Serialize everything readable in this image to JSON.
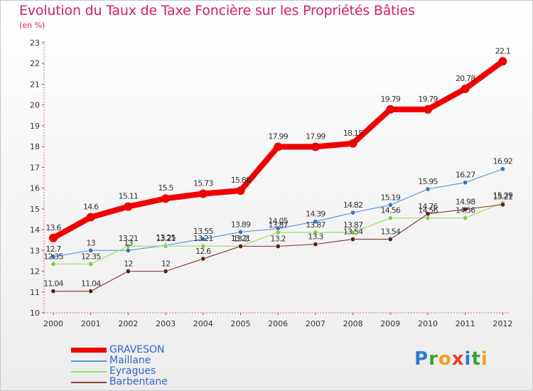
{
  "title": "Evolution du Taux de Taxe Foncière sur les Propriétés Bâties",
  "unit_label": "(en %)",
  "brand": {
    "letters": [
      "P",
      "r",
      "o",
      "x",
      "i",
      "t",
      "i"
    ],
    "colors": [
      "#2a7bd4",
      "#3aa035",
      "#f0a020",
      "#e8402a",
      "#2a7bd4",
      "#3aa035",
      "#f0a020"
    ]
  },
  "chart_data": {
    "type": "line",
    "title": "Evolution du Taux de Taxe Foncière sur les Propriétés Bâties",
    "ylabel": "(en %)",
    "xlabel": "",
    "categories": [
      "2000",
      "2001",
      "2002",
      "2003",
      "2004",
      "2005",
      "2006",
      "2007",
      "2008",
      "2009",
      "2010",
      "2011",
      "2012"
    ],
    "ylim": [
      10,
      23
    ],
    "yticks": [
      10,
      11,
      12,
      13,
      14,
      15,
      16,
      17,
      18,
      19,
      20,
      21,
      22,
      23
    ],
    "grid": false,
    "legend_position": "bottom-left",
    "series": [
      {
        "name": "GRAVESON",
        "color": "#ee0000",
        "bold": true,
        "values": [
          13.6,
          14.6,
          15.11,
          15.5,
          15.73,
          15.88,
          17.99,
          17.99,
          18.15,
          19.79,
          19.79,
          20.78,
          22.1
        ],
        "labels": [
          "13.6",
          "14.6",
          "15.11",
          "15.5",
          "15.73",
          "15.88",
          "17.99",
          "17.99",
          "18.15",
          "19.79",
          "19.79",
          "20.78",
          "22.1"
        ]
      },
      {
        "name": "Maillane",
        "color": "#5599dd",
        "marker": "#3377bb",
        "values": [
          12.7,
          13.0,
          13.0,
          13.25,
          13.55,
          13.89,
          14.05,
          14.39,
          14.82,
          15.19,
          15.95,
          16.27,
          16.92
        ],
        "labels": [
          "12.7",
          "13",
          "13",
          "13.25",
          "13.55",
          "13.89",
          "14.05",
          "14.39",
          "14.82",
          "15.19",
          "15.95",
          "16.27",
          "16.92"
        ]
      },
      {
        "name": "Eyragues",
        "color": "#99dd66",
        "marker": "#88cc44",
        "values": [
          12.35,
          12.35,
          13.21,
          13.21,
          13.21,
          13.21,
          13.87,
          13.87,
          13.87,
          14.56,
          14.56,
          14.56,
          15.29
        ],
        "labels": [
          "12.35",
          "12.35",
          "13.21",
          "13.21",
          "13.21",
          "13.21",
          "13.87",
          "13.87",
          "13.87",
          "14.56",
          "14.56",
          "14.56",
          "15.29"
        ]
      },
      {
        "name": "Barbentane",
        "color": "#884444",
        "marker": "#661c1c",
        "values": [
          11.04,
          11.04,
          12.0,
          12.0,
          12.6,
          13.2,
          13.2,
          13.3,
          13.54,
          13.54,
          14.76,
          14.98,
          15.21
        ],
        "labels": [
          "11.04",
          "11.04",
          "12",
          "12",
          "12.6",
          "13.2",
          "13.2",
          "13.3",
          "13.54",
          "13.54",
          "14.76",
          "14.98",
          "15.21"
        ]
      }
    ]
  }
}
